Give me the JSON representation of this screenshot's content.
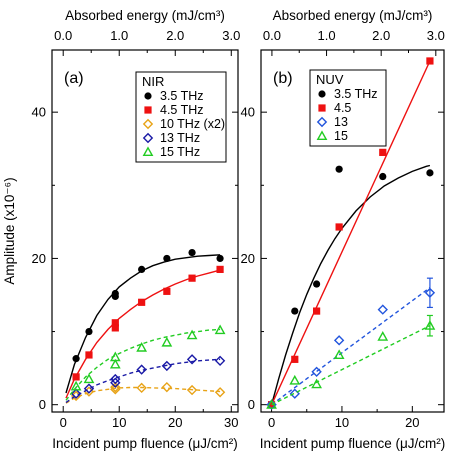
{
  "chart_data": [
    {
      "type": "scatter",
      "panel_label": "(a)",
      "legend_title": "NIR",
      "xlabel": "Incident pump fluence (μJ/cm²)",
      "ylabel": "Amplitude (x10⁻⁶)",
      "top_xlabel": "Absorbed energy (mJ/cm³)",
      "xlim": [
        -2,
        31.2
      ],
      "ylim": [
        -1,
        48.5
      ],
      "xticks": [
        0,
        10,
        20,
        30
      ],
      "xtick_labels": [
        "0",
        "10",
        "20",
        "30"
      ],
      "yticks": [
        0,
        20,
        40
      ],
      "ytick_labels": [
        "0",
        "20",
        "40"
      ],
      "top_xlim": [
        -0.2,
        3.12
      ],
      "top_xticks": [
        0,
        1,
        2,
        3
      ],
      "top_xtick_labels": [
        "0.0",
        "1.0",
        "2.0",
        "3.0"
      ],
      "legend_position": "top-right",
      "series": [
        {
          "name": "3.5 THz",
          "color": "#000000",
          "marker": "circle",
          "fit_style": "solid",
          "x": [
            2.3,
            4.6,
            9.3,
            9.3,
            14,
            18.5,
            23,
            28
          ],
          "y": [
            6.3,
            10,
            15.2,
            14.8,
            18.5,
            20,
            20.8,
            20
          ],
          "fit": [
            [
              0.5,
              1.6
            ],
            [
              2,
              5.5
            ],
            [
              4,
              9.2
            ],
            [
              6,
              12.2
            ],
            [
              8,
              14.4
            ],
            [
              10,
              16.1
            ],
            [
              12,
              17.3
            ],
            [
              14,
              18.3
            ],
            [
              16,
              19
            ],
            [
              18,
              19.5
            ],
            [
              20,
              19.9
            ],
            [
              22,
              20.1
            ],
            [
              24,
              20.3
            ],
            [
              26,
              20.4
            ],
            [
              28,
              20.5
            ]
          ]
        },
        {
          "name": "4.5 THz",
          "color": "#ee1111",
          "marker": "square",
          "fit_style": "solid",
          "x": [
            2.3,
            4.6,
            9.3,
            9.3,
            14,
            18.5,
            23,
            28
          ],
          "y": [
            3.8,
            6.8,
            11.2,
            10.5,
            14,
            15.5,
            17.3,
            18.5
          ],
          "fit": [
            [
              0.5,
              0.9
            ],
            [
              2,
              3.5
            ],
            [
              4,
              6.2
            ],
            [
              6,
              8.5
            ],
            [
              8,
              10.3
            ],
            [
              10,
              11.8
            ],
            [
              12,
              13
            ],
            [
              14,
              14.1
            ],
            [
              16,
              15
            ],
            [
              18,
              15.8
            ],
            [
              20,
              16.5
            ],
            [
              22,
              17.1
            ],
            [
              24,
              17.6
            ],
            [
              26,
              18
            ],
            [
              28,
              18.4
            ]
          ]
        },
        {
          "name": "10 THz (x2)",
          "color": "#e8a317",
          "marker": "diamond",
          "fit_style": "dashed",
          "x": [
            2.3,
            4.6,
            9.3,
            9.3,
            14,
            18.5,
            23,
            28
          ],
          "y": [
            1.2,
            1.8,
            2.1,
            2.4,
            2.3,
            2.4,
            2.0,
            1.7
          ],
          "fit": [
            [
              0.5,
              0.2
            ],
            [
              2,
              0.9
            ],
            [
              4,
              1.5
            ],
            [
              6,
              1.9
            ],
            [
              8,
              2.1
            ],
            [
              10,
              2.3
            ],
            [
              12,
              2.35
            ],
            [
              14,
              2.35
            ],
            [
              16,
              2.3
            ],
            [
              18,
              2.25
            ],
            [
              20,
              2.2
            ],
            [
              22,
              2.1
            ],
            [
              24,
              2.0
            ],
            [
              26,
              1.9
            ],
            [
              28,
              1.8
            ]
          ]
        },
        {
          "name": "13 THz",
          "color": "#1a1aa6",
          "marker": "diamond",
          "fit_style": "dashed",
          "x": [
            2.3,
            4.6,
            9.3,
            9.3,
            14,
            18.5,
            23,
            28
          ],
          "y": [
            1.5,
            2.2,
            3.0,
            3.5,
            4.8,
            5.3,
            6.2,
            6.0
          ],
          "fit": [
            [
              0.5,
              0.3
            ],
            [
              2,
              1.1
            ],
            [
              4,
              1.9
            ],
            [
              6,
              2.7
            ],
            [
              8,
              3.3
            ],
            [
              10,
              3.8
            ],
            [
              12,
              4.3
            ],
            [
              14,
              4.7
            ],
            [
              16,
              5.0
            ],
            [
              18,
              5.3
            ],
            [
              20,
              5.6
            ],
            [
              22,
              5.8
            ],
            [
              24,
              6.0
            ],
            [
              26,
              6.1
            ],
            [
              28,
              6.2
            ]
          ]
        },
        {
          "name": "15 THz",
          "color": "#22cc22",
          "marker": "triangle",
          "fit_style": "dashed",
          "x": [
            2.3,
            4.6,
            9.3,
            9.3,
            14,
            18.5,
            23,
            28
          ],
          "y": [
            2.5,
            3.5,
            5.5,
            6.5,
            7.8,
            8.5,
            9.5,
            10.2
          ],
          "fit": [
            [
              0.5,
              0.6
            ],
            [
              2,
              2.1
            ],
            [
              4,
              3.8
            ],
            [
              6,
              5.1
            ],
            [
              8,
              6.2
            ],
            [
              10,
              7.0
            ],
            [
              12,
              7.7
            ],
            [
              14,
              8.3
            ],
            [
              16,
              8.8
            ],
            [
              18,
              9.2
            ],
            [
              20,
              9.5
            ],
            [
              22,
              9.8
            ],
            [
              24,
              10.0
            ],
            [
              26,
              10.2
            ],
            [
              28,
              10.3
            ]
          ]
        }
      ]
    },
    {
      "type": "scatter",
      "panel_label": "(b)",
      "legend_title": "NUV",
      "xlabel": "Incident pump fluence (μJ/cm²)",
      "ylabel": "",
      "top_xlabel": "Absorbed energy (mJ/cm³)",
      "xlim": [
        -1.5,
        24.5
      ],
      "ylim": [
        -1,
        48.5
      ],
      "xticks": [
        0,
        10,
        20
      ],
      "xtick_labels": [
        "0",
        "10",
        "20"
      ],
      "yticks": [
        0,
        20,
        40
      ],
      "ytick_labels": [
        "0",
        "20",
        "40"
      ],
      "top_xlim": [
        -0.2,
        3.15
      ],
      "top_xticks": [
        0,
        1,
        2,
        3
      ],
      "top_xtick_labels": [
        "0.0",
        "1.0",
        "2.0",
        "3.0"
      ],
      "legend_position": "top-left",
      "series": [
        {
          "name": "3.5 THz",
          "color": "#000000",
          "marker": "circle",
          "fit_style": "solid",
          "x": [
            0,
            3.3,
            6.4,
            9.6,
            15.8,
            22.5
          ],
          "y": [
            0,
            12.8,
            16.5,
            32.2,
            31.2,
            31.7
          ],
          "fit": [
            [
              0,
              0
            ],
            [
              1,
              3.5
            ],
            [
              2,
              6.8
            ],
            [
              3,
              9.8
            ],
            [
              4,
              12.6
            ],
            [
              5,
              15.1
            ],
            [
              6,
              17.3
            ],
            [
              7,
              19.3
            ],
            [
              8,
              21.1
            ],
            [
              9,
              22.7
            ],
            [
              10,
              24.1
            ],
            [
              12,
              26.5
            ],
            [
              14,
              28.4
            ],
            [
              16,
              29.9
            ],
            [
              18,
              31.0
            ],
            [
              20,
              31.9
            ],
            [
              22,
              32.6
            ],
            [
              22.5,
              32.7
            ]
          ]
        },
        {
          "name": "4.5",
          "color": "#ee1111",
          "marker": "square",
          "fit_style": "solid",
          "x": [
            0,
            3.3,
            6.4,
            9.6,
            15.8,
            22.5
          ],
          "y": [
            0,
            6.2,
            12.8,
            24.3,
            34.5,
            47
          ],
          "fit": [
            [
              0,
              0
            ],
            [
              22.5,
              47
            ]
          ]
        },
        {
          "name": "13",
          "color": "#2255dd",
          "marker": "diamond",
          "fit_style": "dashed",
          "x": [
            0,
            3.3,
            6.4,
            9.6,
            15.8,
            22.5
          ],
          "y": [
            0,
            1.5,
            4.5,
            8.8,
            13,
            15.3
          ],
          "err": [
            0,
            0,
            0,
            0,
            0,
            2
          ],
          "fit": [
            [
              0,
              0
            ],
            [
              22.5,
              16
            ]
          ]
        },
        {
          "name": "15",
          "color": "#22cc22",
          "marker": "triangle",
          "fit_style": "dashed",
          "x": [
            0,
            3.3,
            6.4,
            9.6,
            15.8,
            22.5
          ],
          "y": [
            0,
            3.3,
            2.8,
            6.8,
            9.3,
            10.8
          ],
          "err": [
            0,
            0,
            0,
            0,
            0,
            1.4
          ],
          "fit": [
            [
              0,
              0
            ],
            [
              22.5,
              10.8
            ]
          ]
        }
      ]
    }
  ]
}
